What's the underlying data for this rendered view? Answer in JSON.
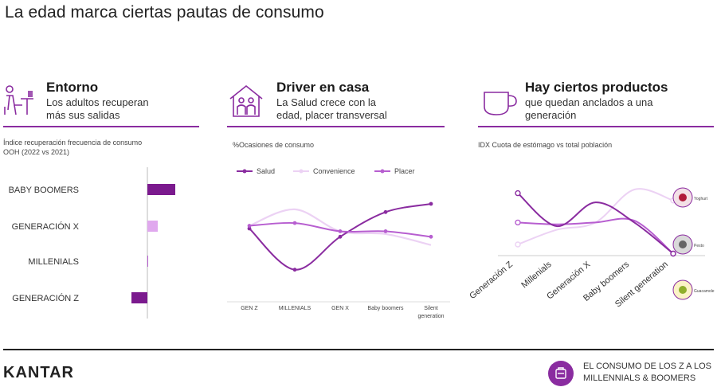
{
  "title": "La edad marca ciertas pautas de consumo",
  "colors": {
    "accent": "#8a2ca0",
    "bar_dark": "#7b1a8e",
    "bar_light": "#e0a8ee",
    "line_dark": "#8a2ca0",
    "line_light": "#ecd2f4",
    "line_mid": "#b75ed0"
  },
  "sections": [
    {
      "title": "Entorno",
      "subtitle": [
        "Los adultos recuperan",
        "más sus salidas"
      ],
      "icon": "restaurant-icon",
      "caption": [
        "Índice recuperación frecuencia de consumo",
        "OOH (2022 vs 2021)"
      ]
    },
    {
      "title": "Driver en casa",
      "subtitle": [
        "La Salud crece con la",
        "edad, placer transversal"
      ],
      "icon": "house-family-icon",
      "caption": [
        "%Ocasiones de consumo"
      ]
    },
    {
      "title": "Hay ciertos productos",
      "subtitle": [
        "que quedan anclados a una",
        "generación"
      ],
      "icon": "cup-icon",
      "caption": [
        "IDX Cuota de estómago vs total población"
      ]
    }
  ],
  "chart_data": [
    {
      "type": "bar",
      "orientation": "horizontal",
      "categories": [
        "BABY BOOMERS",
        "GENERACIÓN X",
        "MILLENIALS",
        "GENERACIÓN Z"
      ],
      "values": [
        35,
        13,
        1,
        -20
      ],
      "xlim": [
        -30,
        40
      ],
      "grid": false,
      "legend": "none"
    },
    {
      "type": "line",
      "categories": [
        "GEN Z",
        "MILLENIALS",
        "GEN X",
        "Baby boomers",
        "Silent generation"
      ],
      "series": [
        {
          "name": "Salud",
          "values": [
            27,
            12,
            24,
            33,
            36
          ]
        },
        {
          "name": "Convenience",
          "values": [
            28,
            34,
            26,
            25,
            21
          ]
        },
        {
          "name": "Placer",
          "values": [
            28,
            29,
            26,
            26,
            24
          ]
        }
      ],
      "ylim": [
        0,
        45
      ],
      "legend": "top"
    },
    {
      "type": "line",
      "categories": [
        "Generación Z",
        "Millenials",
        "Generación X",
        "Baby boomers",
        "Silent generation"
      ],
      "series": [
        {
          "values": [
            108,
            90,
            103,
            92,
            75
          ]
        },
        {
          "values": [
            80,
            88,
            92,
            110,
            104
          ]
        },
        {
          "values": [
            92,
            91,
            92,
            93,
            75
          ]
        }
      ],
      "ylim": [
        70,
        120
      ],
      "annotations": [
        "Yoghurt",
        "Pesto",
        "Guacamole"
      ],
      "legend": "none"
    }
  ],
  "footer": {
    "brand": "KANTAR",
    "text": "EL CONSUMO DE LOS Z A LOS MILLENNIALS & BOOMERS"
  }
}
